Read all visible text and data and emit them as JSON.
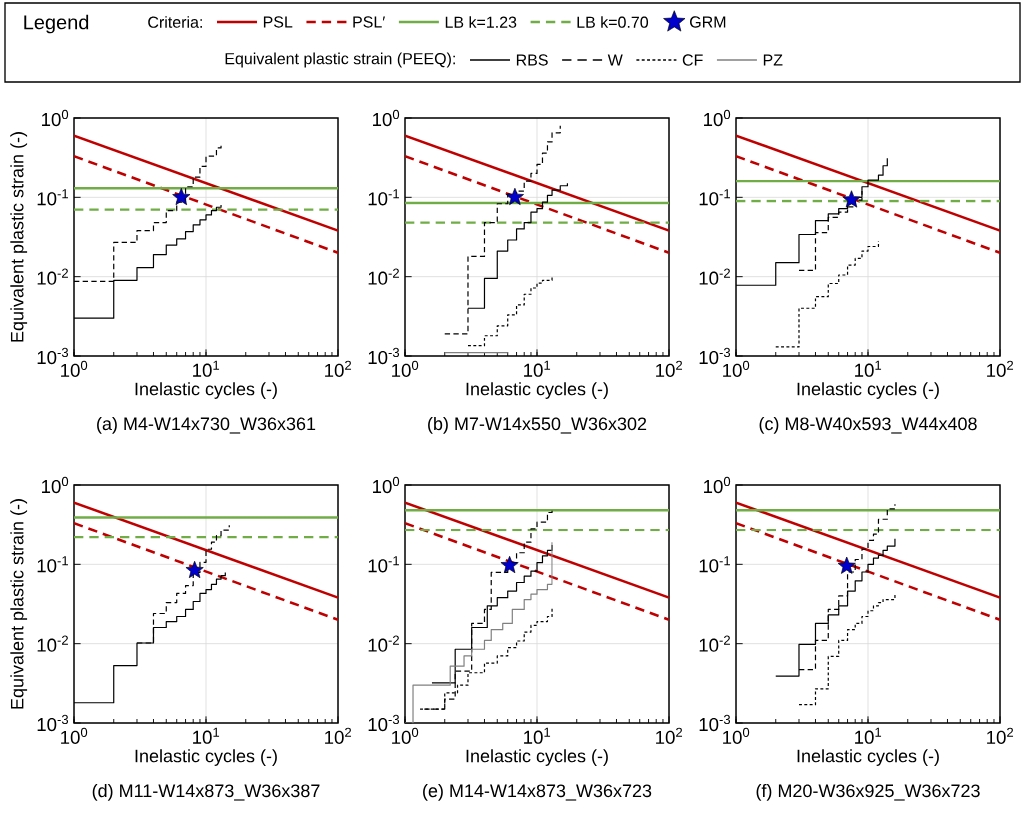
{
  "chart_data": [
    {
      "type": "line",
      "title": "(a) M4-W14x730_W36x361",
      "xlabel": "Inelastic cycles (-)",
      "ylabel": "Equivalent plastic strain (-)",
      "log": "xy",
      "grid": true,
      "xlim": [
        1,
        100
      ],
      "ylim": [
        0.001,
        1
      ],
      "xticks": [
        {
          "value": 1,
          "label": "10$^{0}$"
        },
        {
          "value": 10,
          "label": "10$^{1}$"
        },
        {
          "value": 100,
          "label": "10$^{2}$"
        }
      ],
      "yticks": [
        {
          "value": 0.001,
          "label": "10$^{-3}$"
        },
        {
          "value": 0.01,
          "label": "10$^{-2}$"
        },
        {
          "value": 0.1,
          "label": "10$^{-1}$"
        },
        {
          "value": 1,
          "label": "10$^{0}$"
        }
      ],
      "series": [
        {
          "color": "#c00000",
          "line_style": "solid",
          "x": [
            1,
            100
          ],
          "values": [
            0.6,
            0.038
          ]
        },
        {
          "color": "#c00000",
          "line_style": "dashed",
          "x": [
            1,
            100
          ],
          "values": [
            0.33,
            0.02
          ]
        },
        {
          "color": "#70ad47",
          "line_style": "solid",
          "x": [
            1,
            100
          ],
          "values": [
            0.13,
            0.13
          ]
        },
        {
          "color": "#70ad47",
          "line_style": "dashed",
          "x": [
            1,
            100
          ],
          "values": [
            0.07,
            0.07
          ]
        },
        {
          "type": "step",
          "color": "#000000",
          "line_style": "solid",
          "x": [
            1,
            2,
            3,
            4,
            5,
            6,
            7,
            8,
            9,
            10,
            11,
            12,
            13
          ],
          "values": [
            0.003,
            0.009,
            0.013,
            0.019,
            0.025,
            0.03,
            0.037,
            0.045,
            0.052,
            0.06,
            0.068,
            0.075,
            0.08
          ]
        },
        {
          "type": "step",
          "color": "#000000",
          "line_style": "dashed",
          "x": [
            1,
            2,
            3,
            4,
            5,
            6,
            7,
            8,
            9,
            10,
            12,
            13
          ],
          "values": [
            0.0087,
            0.027,
            0.038,
            0.048,
            0.068,
            0.087,
            0.136,
            0.18,
            0.245,
            0.33,
            0.42,
            0.46
          ]
        },
        {
          "type": "scatter",
          "color": "#0000cc",
          "marker": "star",
          "x": [
            6.5
          ],
          "values": [
            0.1
          ]
        }
      ]
    },
    {
      "type": "line",
      "title": "(b) M7-W14x550_W36x302",
      "xlabel": "Inelastic cycles (-)",
      "log": "xy",
      "grid": true,
      "xlim": [
        1,
        100
      ],
      "ylim": [
        0.001,
        1
      ],
      "xticks": [
        {
          "value": 1,
          "label": "10$^{0}$"
        },
        {
          "value": 10,
          "label": "10$^{1}$"
        },
        {
          "value": 100,
          "label": "10$^{2}$"
        }
      ],
      "yticks": [
        {
          "value": 0.001,
          "label": "10$^{-3}$"
        },
        {
          "value": 0.01,
          "label": "10$^{-2}$"
        },
        {
          "value": 0.1,
          "label": "10$^{-1}$"
        },
        {
          "value": 1,
          "label": "10$^{0}$"
        }
      ],
      "series": [
        {
          "color": "#c00000",
          "line_style": "solid",
          "x": [
            1,
            100
          ],
          "values": [
            0.6,
            0.038
          ]
        },
        {
          "color": "#c00000",
          "line_style": "dashed",
          "x": [
            1,
            100
          ],
          "values": [
            0.33,
            0.02
          ]
        },
        {
          "color": "#70ad47",
          "line_style": "solid",
          "x": [
            1,
            100
          ],
          "values": [
            0.085,
            0.085
          ]
        },
        {
          "color": "#70ad47",
          "line_style": "dashed",
          "x": [
            1,
            100
          ],
          "values": [
            0.048,
            0.048
          ]
        },
        {
          "type": "step",
          "color": "#000000",
          "line_style": "solid",
          "x": [
            3,
            4,
            5,
            6,
            7,
            8,
            9,
            10,
            11,
            12,
            13,
            15,
            17
          ],
          "values": [
            0.004,
            0.0095,
            0.021,
            0.029,
            0.04,
            0.048,
            0.065,
            0.072,
            0.087,
            0.106,
            0.123,
            0.14,
            0.15
          ]
        },
        {
          "type": "step",
          "color": "#000000",
          "line_style": "dashed",
          "x": [
            2,
            3,
            4,
            5,
            6,
            7,
            8,
            9,
            10,
            11,
            12,
            13,
            15
          ],
          "values": [
            0.0019,
            0.018,
            0.048,
            0.083,
            0.11,
            0.12,
            0.16,
            0.2,
            0.26,
            0.36,
            0.5,
            0.65,
            0.8
          ]
        },
        {
          "type": "step",
          "color": "#000000",
          "line_style": "dotted",
          "x": [
            3,
            4,
            5,
            6,
            7,
            8,
            9,
            10,
            11,
            13
          ],
          "values": [
            0.00135,
            0.0018,
            0.0024,
            0.0033,
            0.0044,
            0.006,
            0.0072,
            0.0083,
            0.009,
            0.0104
          ]
        },
        {
          "type": "step",
          "color": "#808080",
          "line_style": "solid",
          "x": [
            2,
            6
          ],
          "values": [
            0.0011,
            0.0011
          ]
        },
        {
          "type": "scatter",
          "color": "#0000cc",
          "marker": "star",
          "x": [
            6.8
          ],
          "values": [
            0.1
          ]
        }
      ]
    },
    {
      "type": "line",
      "title": "(c) M8-W40x593_W44x408",
      "xlabel": "Inelastic cycles (-)",
      "log": "xy",
      "grid": true,
      "xlim": [
        1,
        100
      ],
      "ylim": [
        0.001,
        1
      ],
      "xticks": [
        {
          "value": 1,
          "label": "10$^{0}$"
        },
        {
          "value": 10,
          "label": "10$^{1}$"
        },
        {
          "value": 100,
          "label": "10$^{2}$"
        }
      ],
      "yticks": [
        {
          "value": 0.001,
          "label": "10$^{-3}$"
        },
        {
          "value": 0.01,
          "label": "10$^{-2}$"
        },
        {
          "value": 0.1,
          "label": "10$^{-1}$"
        },
        {
          "value": 1,
          "label": "10$^{0}$"
        }
      ],
      "series": [
        {
          "color": "#c00000",
          "line_style": "solid",
          "x": [
            1,
            100
          ],
          "values": [
            0.6,
            0.038
          ]
        },
        {
          "color": "#c00000",
          "line_style": "dashed",
          "x": [
            1,
            100
          ],
          "values": [
            0.33,
            0.02
          ]
        },
        {
          "color": "#70ad47",
          "line_style": "solid",
          "x": [
            1,
            100
          ],
          "values": [
            0.16,
            0.16
          ]
        },
        {
          "color": "#70ad47",
          "line_style": "dashed",
          "x": [
            1,
            100
          ],
          "values": [
            0.09,
            0.09
          ]
        },
        {
          "type": "step",
          "color": "#000000",
          "line_style": "solid",
          "x": [
            1,
            2,
            3,
            4,
            5,
            6,
            7,
            8,
            9,
            10,
            12,
            13,
            14
          ],
          "values": [
            0.0078,
            0.015,
            0.034,
            0.051,
            0.062,
            0.072,
            0.083,
            0.1,
            0.136,
            0.165,
            0.19,
            0.25,
            0.31
          ]
        },
        {
          "type": "step",
          "color": "#000000",
          "line_style": "dashed",
          "x": [
            3,
            4,
            5,
            6,
            7,
            8,
            9
          ],
          "values": [
            0.012,
            0.036,
            0.056,
            0.065,
            0.076,
            0.092,
            0.12
          ]
        },
        {
          "type": "step",
          "color": "#000000",
          "line_style": "dotted",
          "x": [
            2,
            3,
            4,
            5,
            6,
            7,
            8,
            9,
            10,
            12
          ],
          "values": [
            0.0013,
            0.004,
            0.0056,
            0.0082,
            0.0105,
            0.014,
            0.017,
            0.021,
            0.024,
            0.028
          ]
        },
        {
          "type": "scatter",
          "color": "#0000cc",
          "marker": "star",
          "x": [
            7.5
          ],
          "values": [
            0.093
          ]
        }
      ]
    },
    {
      "type": "line",
      "title": "(d) M11-W14x873_W36x387",
      "xlabel": "Inelastic cycles (-)",
      "ylabel": "Equivalent plastic strain (-)",
      "log": "xy",
      "grid": true,
      "xlim": [
        1,
        100
      ],
      "ylim": [
        0.001,
        1
      ],
      "xticks": [
        {
          "value": 1,
          "label": "10$^{0}$"
        },
        {
          "value": 10,
          "label": "10$^{1}$"
        },
        {
          "value": 100,
          "label": "10$^{2}$"
        }
      ],
      "yticks": [
        {
          "value": 0.001,
          "label": "10$^{-3}$"
        },
        {
          "value": 0.01,
          "label": "10$^{-2}$"
        },
        {
          "value": 0.1,
          "label": "10$^{-1}$"
        },
        {
          "value": 1,
          "label": "10$^{0}$"
        }
      ],
      "series": [
        {
          "color": "#c00000",
          "line_style": "solid",
          "x": [
            1,
            100
          ],
          "values": [
            0.6,
            0.038
          ]
        },
        {
          "color": "#c00000",
          "line_style": "dashed",
          "x": [
            1,
            100
          ],
          "values": [
            0.33,
            0.02
          ]
        },
        {
          "color": "#70ad47",
          "line_style": "solid",
          "x": [
            1,
            100
          ],
          "values": [
            0.39,
            0.39
          ]
        },
        {
          "color": "#70ad47",
          "line_style": "dashed",
          "x": [
            1,
            100
          ],
          "values": [
            0.22,
            0.22
          ]
        },
        {
          "type": "step",
          "color": "#000000",
          "line_style": "solid",
          "x": [
            1,
            2,
            3,
            4,
            5,
            6,
            7,
            8,
            9,
            10,
            11,
            12,
            13,
            14
          ],
          "values": [
            0.0018,
            0.0053,
            0.0102,
            0.016,
            0.019,
            0.022,
            0.027,
            0.034,
            0.043,
            0.048,
            0.056,
            0.065,
            0.072,
            0.079
          ]
        },
        {
          "type": "step",
          "color": "#000000",
          "line_style": "dashed",
          "x": [
            3,
            4,
            5,
            6,
            7,
            8,
            9,
            10,
            11,
            12,
            13,
            15
          ],
          "values": [
            0.0102,
            0.024,
            0.033,
            0.043,
            0.054,
            0.079,
            0.106,
            0.155,
            0.19,
            0.23,
            0.27,
            0.31
          ]
        },
        {
          "type": "scatter",
          "color": "#0000cc",
          "marker": "star",
          "x": [
            8.2
          ],
          "values": [
            0.084
          ]
        }
      ]
    },
    {
      "type": "line",
      "title": "(e) M14-W14x873_W36x723",
      "xlabel": "Inelastic cycles (-)",
      "log": "xy",
      "grid": true,
      "legend": "top",
      "legend_title": "Legend",
      "annotations": [
        "Criteria:",
        "Equivalent plastic strain (PEEQ):"
      ],
      "xlim": [
        1,
        100
      ],
      "ylim": [
        0.001,
        1
      ],
      "xticks": [
        {
          "value": 1,
          "label": "10$^{0}$"
        },
        {
          "value": 10,
          "label": "10$^{1}$"
        },
        {
          "value": 100,
          "label": "10$^{2}$"
        }
      ],
      "yticks": [
        {
          "value": 0.001,
          "label": "10$^{-3}$"
        },
        {
          "value": 0.01,
          "label": "10$^{-2}$"
        },
        {
          "value": 0.1,
          "label": "10$^{-1}$"
        },
        {
          "value": 1,
          "label": "10$^{0}$"
        }
      ],
      "series": [
        {
          "name": "PSL",
          "color": "#c00000",
          "line_style": "solid",
          "x": [
            1,
            100
          ],
          "values": [
            0.6,
            0.038
          ]
        },
        {
          "name": "PSL′",
          "color": "#c00000",
          "line_style": "dashed",
          "x": [
            1,
            100
          ],
          "values": [
            0.33,
            0.02
          ]
        },
        {
          "name": "LB k=1.23",
          "color": "#70ad47",
          "line_style": "solid",
          "x": [
            1,
            100
          ],
          "values": [
            0.48,
            0.48
          ]
        },
        {
          "name": "LB k=0.70",
          "color": "#70ad47",
          "line_style": "dashed",
          "x": [
            1,
            100
          ],
          "values": [
            0.27,
            0.27
          ]
        },
        {
          "name": "RBS",
          "type": "step",
          "color": "#000000",
          "line_style": "solid",
          "x": [
            1.6,
            2.4,
            3.2,
            4.2,
            5,
            6,
            7,
            8,
            9,
            10,
            11,
            12,
            13
          ],
          "values": [
            0.0032,
            0.0085,
            0.016,
            0.03,
            0.038,
            0.046,
            0.059,
            0.071,
            0.082,
            0.105,
            0.128,
            0.15,
            0.175
          ]
        },
        {
          "name": "W",
          "type": "step",
          "color": "#000000",
          "line_style": "dashed",
          "x": [
            1.4,
            2,
            2.4,
            3.2,
            4,
            4.5,
            6,
            7,
            8,
            9,
            10,
            12,
            13
          ],
          "values": [
            0.0015,
            0.002,
            0.0045,
            0.018,
            0.027,
            0.079,
            0.105,
            0.14,
            0.19,
            0.28,
            0.34,
            0.45,
            0.5
          ]
        },
        {
          "name": "CF",
          "type": "step",
          "color": "#000000",
          "line_style": "dotted",
          "x": [
            1.3,
            2,
            2.5,
            3,
            4,
            5,
            6,
            7,
            8,
            9,
            10,
            12,
            13
          ],
          "values": [
            0.0015,
            0.0024,
            0.003,
            0.0043,
            0.0057,
            0.007,
            0.0089,
            0.0108,
            0.014,
            0.017,
            0.019,
            0.022,
            0.028
          ]
        },
        {
          "name": "PZ",
          "type": "step",
          "color": "#808080",
          "line_style": "solid",
          "x": [
            1,
            1.15,
            2.2,
            2.8,
            3.2,
            4,
            4.5,
            5.5,
            6.5,
            8,
            9,
            10,
            12,
            13
          ],
          "values": [
            0.001,
            0.003,
            0.0052,
            0.007,
            0.0085,
            0.011,
            0.015,
            0.018,
            0.027,
            0.036,
            0.042,
            0.048,
            0.056,
            0.19
          ]
        },
        {
          "name": "GRM",
          "type": "scatter",
          "color": "#0000cc",
          "marker": "star",
          "x": [
            6.2
          ],
          "values": [
            0.097
          ]
        }
      ]
    },
    {
      "type": "line",
      "title": "(f) M20-W36x925_W36x723",
      "xlabel": "Inelastic cycles (-)",
      "log": "xy",
      "grid": true,
      "xlim": [
        1,
        100
      ],
      "ylim": [
        0.001,
        1
      ],
      "xticks": [
        {
          "value": 1,
          "label": "10$^{0}$"
        },
        {
          "value": 10,
          "label": "10$^{1}$"
        },
        {
          "value": 100,
          "label": "10$^{2}$"
        }
      ],
      "yticks": [
        {
          "value": 0.001,
          "label": "10$^{-3}$"
        },
        {
          "value": 0.01,
          "label": "10$^{-2}$"
        },
        {
          "value": 0.1,
          "label": "10$^{-1}$"
        },
        {
          "value": 1,
          "label": "10$^{0}$"
        }
      ],
      "series": [
        {
          "color": "#c00000",
          "line_style": "solid",
          "x": [
            1,
            100
          ],
          "values": [
            0.6,
            0.038
          ]
        },
        {
          "color": "#c00000",
          "line_style": "dashed",
          "x": [
            1,
            100
          ],
          "values": [
            0.33,
            0.02
          ]
        },
        {
          "color": "#70ad47",
          "line_style": "solid",
          "x": [
            1,
            100
          ],
          "values": [
            0.48,
            0.48
          ]
        },
        {
          "color": "#70ad47",
          "line_style": "dashed",
          "x": [
            1,
            100
          ],
          "values": [
            0.27,
            0.27
          ]
        },
        {
          "type": "step",
          "color": "#000000",
          "line_style": "solid",
          "x": [
            2,
            3,
            4,
            5,
            6,
            7,
            8,
            9,
            10,
            11,
            12,
            13,
            14,
            16
          ],
          "values": [
            0.0039,
            0.0098,
            0.018,
            0.023,
            0.03,
            0.046,
            0.062,
            0.08,
            0.1,
            0.12,
            0.13,
            0.15,
            0.17,
            0.21
          ]
        },
        {
          "type": "step",
          "color": "#000000",
          "line_style": "dashed",
          "x": [
            3,
            4,
            5,
            6,
            7,
            8,
            9,
            10,
            11,
            12,
            14,
            16
          ],
          "values": [
            0.0047,
            0.011,
            0.027,
            0.04,
            0.08,
            0.115,
            0.155,
            0.2,
            0.24,
            0.37,
            0.5,
            0.57
          ]
        },
        {
          "type": "step",
          "color": "#000000",
          "line_style": "dotted",
          "x": [
            3,
            4,
            5,
            6,
            7,
            8,
            9,
            10,
            11,
            12,
            13,
            16
          ],
          "values": [
            0.0017,
            0.0027,
            0.0069,
            0.011,
            0.015,
            0.018,
            0.022,
            0.026,
            0.03,
            0.033,
            0.036,
            0.042
          ]
        },
        {
          "type": "scatter",
          "color": "#0000cc",
          "marker": "star",
          "x": [
            6.9
          ],
          "values": [
            0.095
          ]
        }
      ]
    }
  ]
}
